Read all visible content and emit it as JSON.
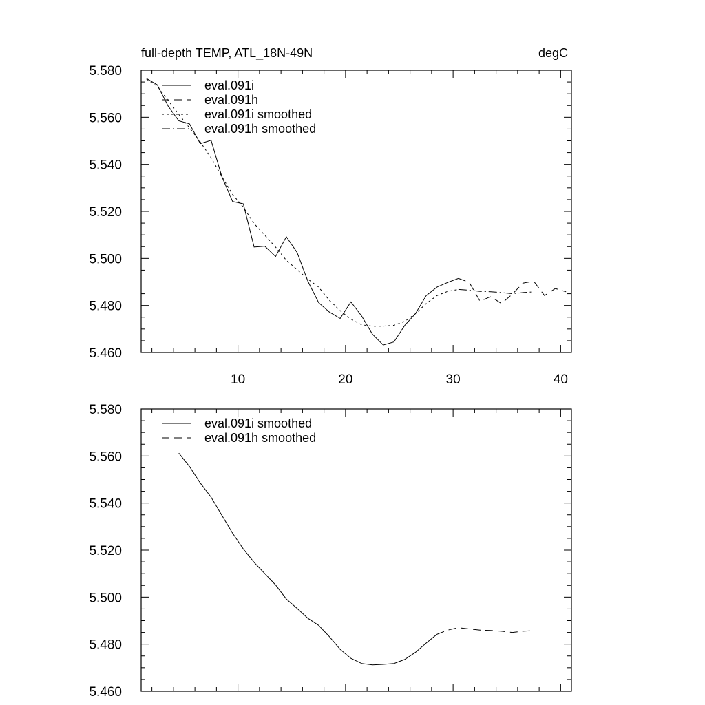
{
  "chart_data": [
    {
      "type": "line",
      "title": "full-depth TEMP, ATL_18N-49N",
      "units": "degC",
      "xlabel": "",
      "ylabel": "",
      "xlim": [
        1,
        41
      ],
      "ylim": [
        5.46,
        5.58
      ],
      "xticks": [
        10,
        20,
        30,
        40
      ],
      "xtick_labels": [
        "10",
        "20",
        "30",
        "40"
      ],
      "yticks": [
        5.46,
        5.48,
        5.5,
        5.52,
        5.54,
        5.56,
        5.58
      ],
      "ytick_labels": [
        "5.460",
        "5.480",
        "5.500",
        "5.520",
        "5.540",
        "5.560",
        "5.580"
      ],
      "legend_placement": "top-left",
      "series": [
        {
          "name": "eval.091i",
          "style": "solid",
          "x": [
            1.5,
            2.5,
            3.5,
            4.5,
            5.5,
            6.5,
            7.5,
            8.5,
            9.5,
            10.5,
            11.5,
            12.5,
            13.5,
            14.5,
            15.5,
            16.5,
            17.5,
            18.5,
            19.5,
            20.5,
            21.5,
            22.5,
            23.5,
            24.5,
            25.5,
            26.5,
            27.5,
            28.5,
            29.5,
            30.5
          ],
          "values": [
            5.5765,
            5.5738,
            5.5648,
            5.5585,
            5.5572,
            5.5488,
            5.5502,
            5.5348,
            5.5242,
            5.5232,
            5.5048,
            5.5052,
            5.5008,
            5.5092,
            5.5025,
            5.4903,
            5.4812,
            5.4772,
            5.4745,
            5.4815,
            5.4755,
            5.4678,
            5.4632,
            5.4645,
            5.4715,
            5.4765,
            5.4842,
            5.4878,
            5.4898,
            5.4915
          ]
        },
        {
          "name": "eval.091h",
          "style": "dash",
          "x": [
            30.5,
            31.5,
            32.5,
            33.5,
            34.5,
            35.5,
            36.5,
            37.5,
            38.5,
            39.5,
            40.5
          ],
          "values": [
            5.4915,
            5.4898,
            5.4818,
            5.4838,
            5.4808,
            5.4848,
            5.4895,
            5.4903,
            5.4842,
            5.4872,
            5.4858
          ]
        },
        {
          "name": "eval.091i smoothed",
          "style": "dot",
          "x": [
            1.5,
            2.5,
            3.5,
            4.5,
            5.5,
            6.5,
            7.5,
            8.5,
            9.5,
            10.5,
            11.5,
            12.5,
            13.5,
            14.5,
            15.5,
            16.5,
            17.5,
            18.5,
            19.5,
            20.5,
            21.5,
            22.5,
            23.5,
            24.5,
            25.5,
            26.5,
            27.5,
            28.5,
            29.5,
            30.5
          ],
          "values": [
            5.5762,
            5.5732,
            5.5672,
            5.5612,
            5.5555,
            5.5495,
            5.5428,
            5.5348,
            5.5272,
            5.5218,
            5.5148,
            5.5098,
            5.5048,
            5.4992,
            5.4952,
            5.4912,
            5.4878,
            5.4822,
            5.4778,
            5.4742,
            5.4718,
            5.4712,
            5.4712,
            5.4716,
            5.4732,
            5.4765,
            5.4808,
            5.4842,
            5.486,
            5.4868
          ]
        },
        {
          "name": "eval.091h smoothed",
          "style": "dashdot",
          "x": [
            30.5,
            31.5,
            32.5,
            33.5,
            34.5,
            35.5,
            36.5,
            37.5
          ],
          "values": [
            5.4868,
            5.4865,
            5.486,
            5.4858,
            5.4855,
            5.485,
            5.4855,
            5.4858
          ]
        }
      ]
    },
    {
      "type": "line",
      "title": "",
      "xlabel": "",
      "ylabel": "",
      "xlim": [
        1,
        41
      ],
      "ylim": [
        5.46,
        5.58
      ],
      "xticks": [
        10,
        20,
        30,
        40
      ],
      "yticks": [
        5.46,
        5.48,
        5.5,
        5.52,
        5.54,
        5.56,
        5.58
      ],
      "ytick_labels": [
        "5.460",
        "5.480",
        "5.500",
        "5.520",
        "5.540",
        "5.560",
        "5.580"
      ],
      "legend_placement": "top-left",
      "series": [
        {
          "name": "eval.091i smoothed",
          "style": "solid",
          "x": [
            4.5,
            5.5,
            6.5,
            7.5,
            8.5,
            9.5,
            10.5,
            11.5,
            12.5,
            13.5,
            14.5,
            15.5,
            16.5,
            17.5,
            18.5,
            19.5,
            20.5,
            21.5,
            22.5,
            23.5,
            24.5,
            25.5,
            26.5,
            27.5,
            28.5
          ],
          "values": [
            5.5612,
            5.5555,
            5.5485,
            5.5425,
            5.5348,
            5.5272,
            5.5205,
            5.5148,
            5.51,
            5.5052,
            5.4992,
            5.4952,
            5.491,
            5.488,
            5.4832,
            5.4778,
            5.474,
            5.4718,
            5.4712,
            5.4714,
            5.4718,
            5.4735,
            5.4765,
            5.4805,
            5.4842
          ]
        },
        {
          "name": "eval.091h smoothed",
          "style": "dash",
          "x": [
            28.5,
            29.5,
            30.5,
            31.5,
            32.5,
            33.5,
            34.5,
            35.5,
            36.5,
            37.5
          ],
          "values": [
            5.4842,
            5.486,
            5.487,
            5.4865,
            5.486,
            5.4858,
            5.4855,
            5.485,
            5.4855,
            5.4858
          ]
        }
      ]
    }
  ]
}
